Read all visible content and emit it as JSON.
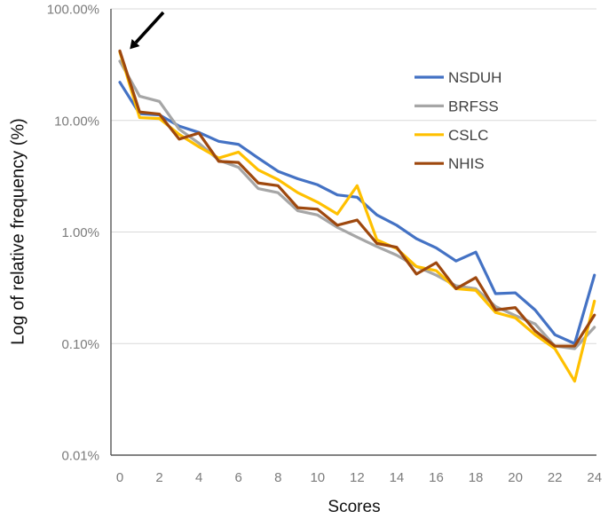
{
  "figure": {
    "background": "#ffffff"
  },
  "chart_data": {
    "type": "line",
    "title": "",
    "xlabel": "Scores",
    "ylabel": "Log of relative frequency (%)",
    "y_scale": "log",
    "ylim": [
      0.01,
      100
    ],
    "xlim": [
      0,
      24
    ],
    "grid": "horizontal",
    "legend_position": "inside-top-right",
    "x": [
      0,
      1,
      2,
      3,
      4,
      5,
      6,
      7,
      8,
      9,
      10,
      11,
      12,
      13,
      14,
      15,
      16,
      17,
      18,
      19,
      20,
      21,
      22,
      23,
      24
    ],
    "x_tick_labels": [
      "0",
      "2",
      "4",
      "6",
      "8",
      "10",
      "12",
      "14",
      "16",
      "18",
      "20",
      "22",
      "24"
    ],
    "y_ticks": [
      {
        "label": "100.00%",
        "value": 100
      },
      {
        "label": "10.00%",
        "value": 10
      },
      {
        "label": "1.00%",
        "value": 1
      },
      {
        "label": "0.10%",
        "value": 0.1
      },
      {
        "label": "0.01%",
        "value": 0.01
      }
    ],
    "series": [
      {
        "name": "NSDUH",
        "color": "#4472C4",
        "values": [
          22,
          11.5,
          11.2,
          8.9,
          7.8,
          6.5,
          6.1,
          4.6,
          3.5,
          3.0,
          2.65,
          2.15,
          2.05,
          1.42,
          1.15,
          0.87,
          0.72,
          0.55,
          0.66,
          0.28,
          0.285,
          0.2,
          0.12,
          0.1,
          0.41
        ]
      },
      {
        "name": "BRFSS",
        "color": "#A6A6A6",
        "values": [
          34,
          16.5,
          14.8,
          8.35,
          6.25,
          4.4,
          3.8,
          2.45,
          2.25,
          1.55,
          1.42,
          1.1,
          0.9,
          0.74,
          0.62,
          0.49,
          0.41,
          0.33,
          0.31,
          0.215,
          0.178,
          0.15,
          0.095,
          0.09,
          0.14
        ]
      },
      {
        "name": "CSLC",
        "color": "#FFC000",
        "values": [
          41,
          10.6,
          10.4,
          7.5,
          5.8,
          4.6,
          5.2,
          3.6,
          2.95,
          2.25,
          1.85,
          1.45,
          2.6,
          0.85,
          0.71,
          0.49,
          0.45,
          0.31,
          0.3,
          0.19,
          0.17,
          0.12,
          0.09,
          0.046,
          0.24
        ]
      },
      {
        "name": "NHIS",
        "color": "#9E480E",
        "values": [
          42,
          11.9,
          11.4,
          6.8,
          7.7,
          4.3,
          4.2,
          2.75,
          2.6,
          1.65,
          1.6,
          1.15,
          1.28,
          0.79,
          0.73,
          0.42,
          0.53,
          0.31,
          0.39,
          0.2,
          0.21,
          0.13,
          0.095,
          0.095,
          0.18
        ]
      }
    ],
    "annotation": {
      "type": "arrow",
      "note": "arrow pointing at score-0 peak of NHIS line",
      "from_xy": [
        184,
        14
      ],
      "to_xy": [
        153,
        48
      ],
      "color": "#000000"
    },
    "colors": {
      "gridline": "#D9D9D9",
      "axis": "#595959",
      "tick_text": "#7B7B7B",
      "legend_text": "#404040",
      "title_text": "#111111"
    }
  }
}
